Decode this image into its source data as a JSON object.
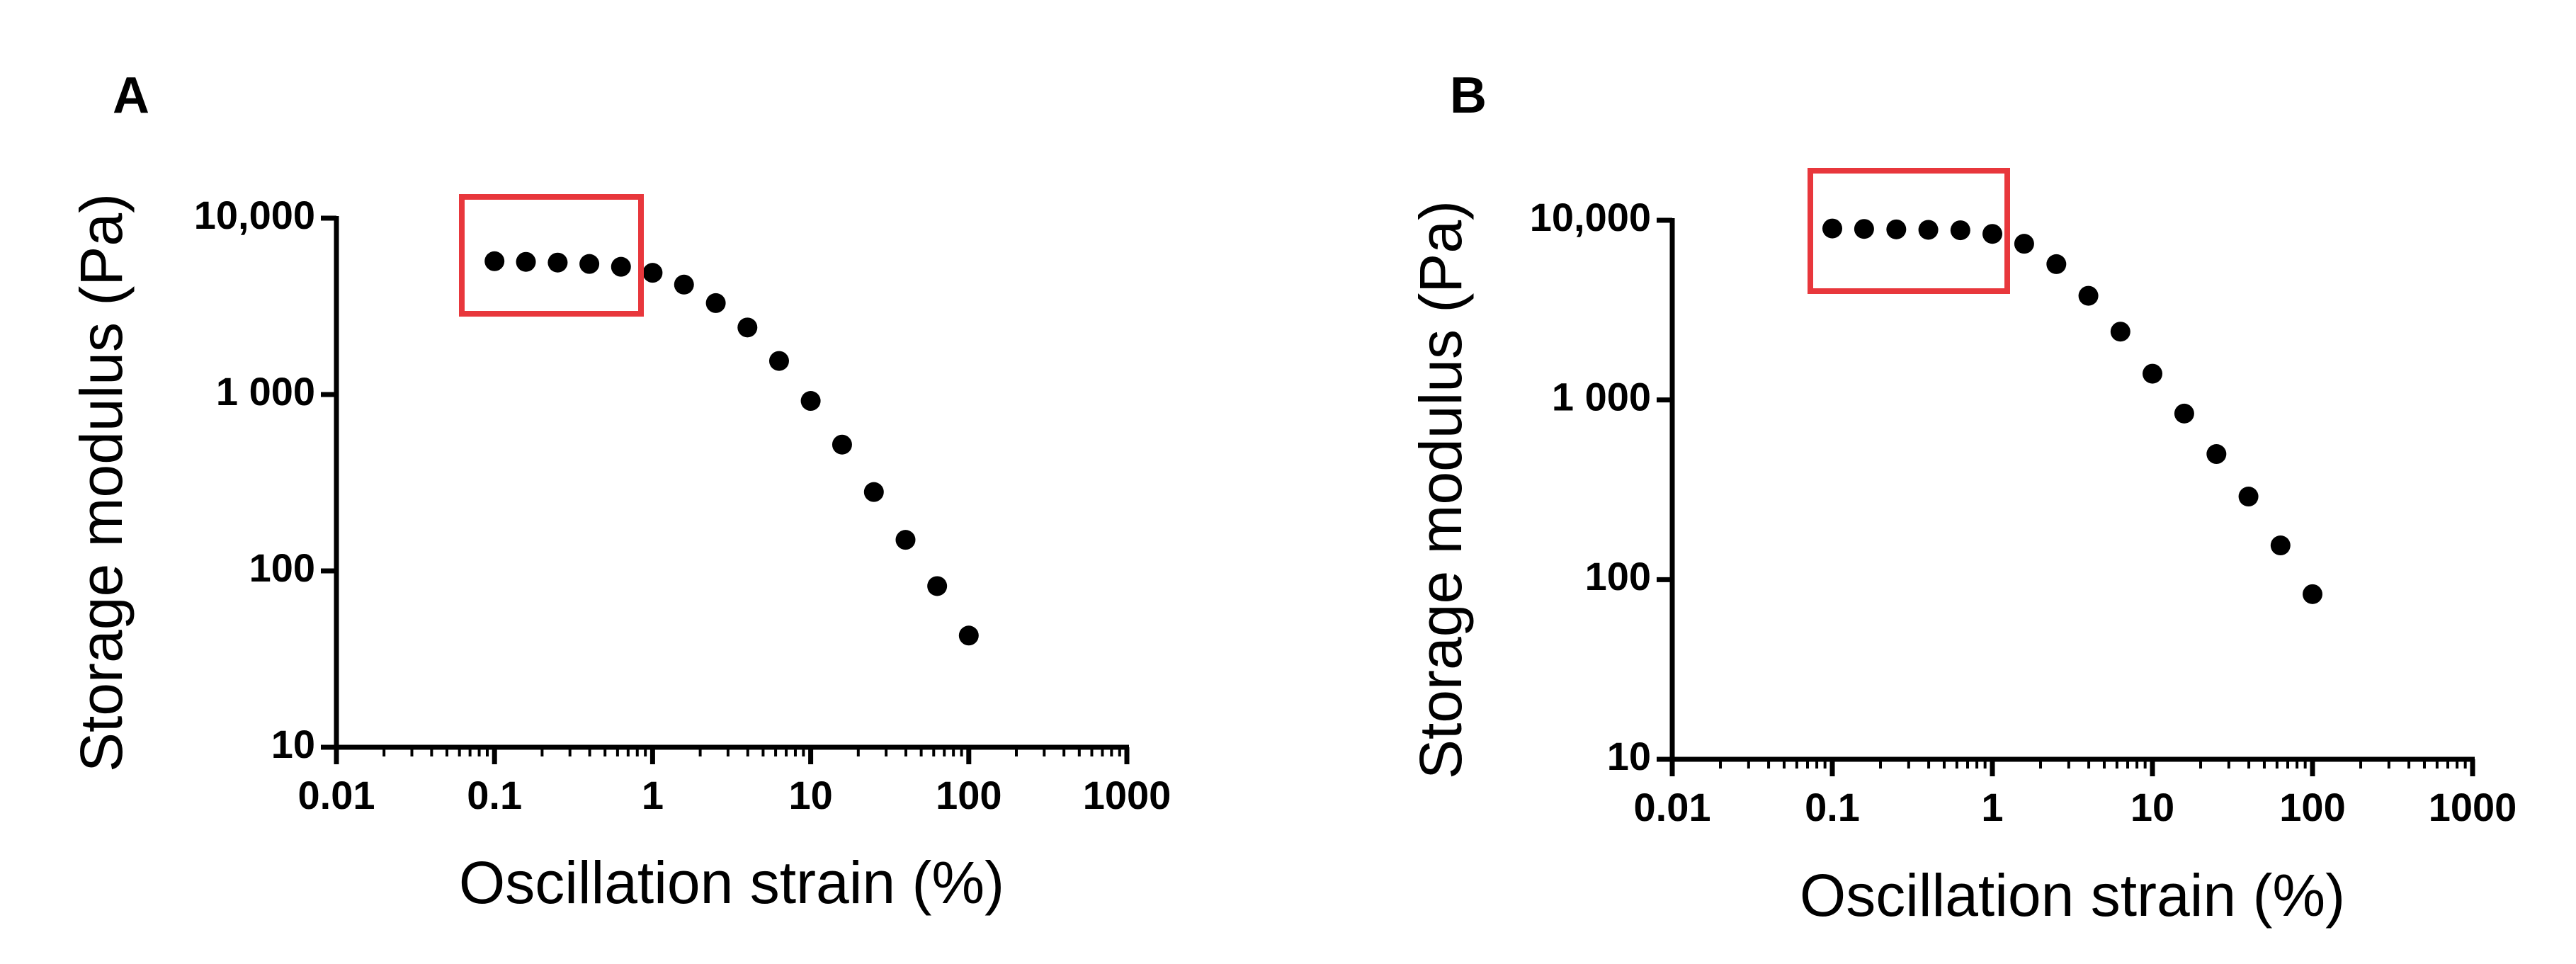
{
  "chart_data": [
    {
      "type": "scatter",
      "panel_label": "A",
      "xlabel": "Oscillation strain (%)",
      "ylabel": "Storage modulus (Pa)",
      "xscale": "log",
      "yscale": "log",
      "color": "#000000",
      "x": [
        0.1,
        0.158,
        0.251,
        0.398,
        0.631,
        1,
        1.58,
        2.51,
        3.98,
        6.31,
        10,
        15.8,
        25.1,
        39.8,
        63.1,
        100
      ],
      "values": [
        5700,
        5650,
        5600,
        5500,
        5300,
        4900,
        4200,
        3300,
        2400,
        1550,
        920,
        520,
        280,
        150,
        82,
        43
      ],
      "xlim": [
        0.01,
        1000
      ],
      "xticks": [
        0.01,
        0.1,
        1,
        10,
        100,
        1000
      ],
      "ylim": [
        10,
        10000
      ],
      "yticks": [
        10,
        100,
        {
          "value": 1000,
          "label": "1 000"
        },
        {
          "value": 10000,
          "label": "10,000"
        }
      ]
    },
    {
      "type": "scatter",
      "panel_label": "B",
      "xlabel": "Oscillation strain (%)",
      "ylabel": "Storage modulus (Pa)",
      "xscale": "log",
      "yscale": "log",
      "color": "#000000",
      "x": [
        0.1,
        0.158,
        0.251,
        0.398,
        0.631,
        1,
        1.58,
        2.51,
        3.98,
        6.31,
        10,
        15.8,
        25.1,
        39.8,
        63.1,
        100
      ],
      "values": [
        9000,
        8950,
        8900,
        8850,
        8800,
        8400,
        7400,
        5700,
        3800,
        2400,
        1400,
        840,
        500,
        290,
        155,
        83
      ],
      "xlim": [
        0.01,
        1000
      ],
      "xticks": [
        0.01,
        0.1,
        1,
        10,
        100,
        1000
      ],
      "ylim": [
        10,
        10000
      ],
      "yticks": [
        10,
        100,
        {
          "value": 1000,
          "label": "1 000"
        },
        {
          "value": 10000,
          "label": "10,000"
        }
      ]
    }
  ]
}
